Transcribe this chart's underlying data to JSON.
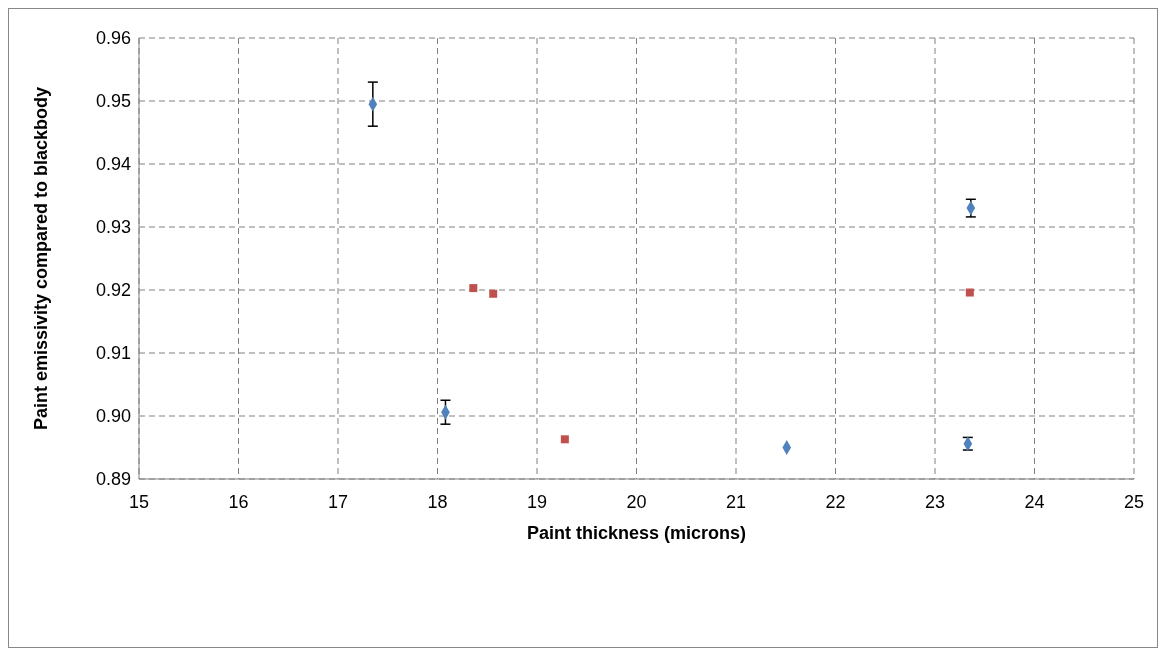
{
  "chart_data": {
    "type": "scatter",
    "xlabel": "Paint thickness (microns)",
    "ylabel": "Paint emissivity compared to blackbody",
    "xlim": [
      15,
      25
    ],
    "xticks": [
      15,
      16,
      17,
      18,
      19,
      20,
      21,
      22,
      23,
      24,
      25
    ],
    "ylim": [
      0.89,
      0.96
    ],
    "yticks": [
      {
        "value": 0.89,
        "label": "0.89"
      },
      {
        "value": 0.9,
        "label": "0.90"
      },
      {
        "value": 0.91,
        "label": "0.91"
      },
      {
        "value": 0.92,
        "label": "0.92"
      },
      {
        "value": 0.93,
        "label": "0.93"
      },
      {
        "value": 0.94,
        "label": "0.94"
      },
      {
        "value": 0.95,
        "label": "0.95"
      },
      {
        "value": 0.96,
        "label": "0.96"
      }
    ],
    "grid": true,
    "legend": false,
    "series": [
      {
        "color": "#4f81bd",
        "marker": "diamond",
        "x": [
          17.35,
          18.08,
          21.51,
          23.36,
          23.33
        ],
        "values": [
          0.9495,
          0.9006,
          0.895,
          0.933,
          0.8956
        ],
        "errors": [
          0.0035,
          0.0019,
          null,
          0.0014,
          0.001
        ]
      },
      {
        "color": "#c0504d",
        "marker": "square",
        "x": [
          18.36,
          18.56,
          19.28,
          23.35
        ],
        "values": [
          0.9203,
          0.9194,
          0.8963,
          0.9196
        ]
      }
    ]
  }
}
